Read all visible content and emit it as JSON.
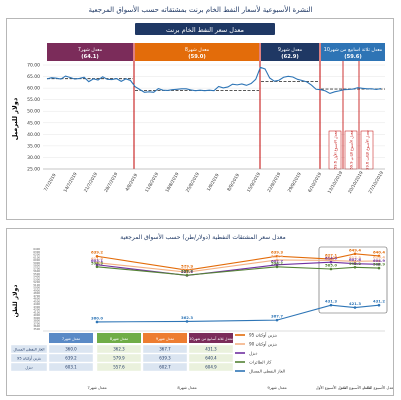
{
  "page_title": "النشرة الأسبوعية لأسعار النفط الخام برنت بمشتقاته حسب الأسواق المرجعية",
  "chart_data": [
    {
      "type": "line",
      "title": "معدل سعر النفط الخام برنت",
      "ylabel": "دولار للبرميل",
      "ylim": [
        25,
        70
      ],
      "yticks": [
        "70.00",
        "65.00",
        "60.00",
        "55.00",
        "50.00",
        "45.00",
        "40.00",
        "35.00",
        "30.00",
        "25.00"
      ],
      "x_labels": [
        "7/7/2019",
        "14/7/2019",
        "21/7/2019",
        "28/7/2019",
        "4/8/2019",
        "11/8/2019",
        "18/8/2019",
        "25/8/2019",
        "1/9/2019",
        "8/9/2019",
        "15/9/2019",
        "22/9/2019",
        "29/9/2019",
        "6/10/2019",
        "13/10/2019",
        "20/10/2019",
        "27/10/2019"
      ],
      "period_boxes": [
        {
          "label": "معدل شهر7",
          "value": "(64.1)",
          "color": "#7b2c5a"
        },
        {
          "label": "معدل شهر8",
          "value": "(59.0)",
          "color": "#e36c0a"
        },
        {
          "label": "معدل شهر9",
          "value": "(62.9)",
          "color": "#1f3864"
        },
        {
          "label": "معدل ثلاثة اسابيع من شهر10",
          "value": "(59.6)",
          "color": "#2e74b5"
        }
      ],
      "annotations": [
        "معدل الاسبوع الأول 59.6",
        "معدل الأسبوع الثاني 59.9",
        "معدل الأسبوع الثالث 59.6"
      ],
      "series": [
        {
          "values": [
            64.0,
            64.5,
            64.3,
            63.9,
            65.2,
            64.6,
            63.9,
            64.2,
            64.7,
            62.8,
            64.0,
            63.5,
            64.9,
            63.8,
            63.7,
            64.1,
            62.9,
            64.0,
            63.3,
            60.6,
            59.4,
            58.2,
            58.4,
            58.2,
            59.8,
            59.1,
            59.0,
            59.3,
            59.5,
            59.7,
            59.7,
            59.2,
            58.9,
            59.1,
            58.9,
            59.1,
            58.9,
            60.7,
            60.1,
            60.5,
            61.7,
            61.4,
            61.8,
            61.2,
            62.0,
            63.8,
            69.0,
            68.3,
            64.4,
            63.0,
            63.4,
            64.7,
            65.1,
            64.8,
            63.8,
            63.3,
            62.7,
            61.3,
            59.5,
            59.3,
            58.8,
            57.7,
            58.4,
            58.8,
            59.3,
            59.4,
            59.6,
            60.2,
            59.9,
            59.7,
            59.7,
            59.4,
            59.8
          ]
        }
      ],
      "averages": [
        64.1,
        59.0,
        62.9,
        59.6
      ]
    },
    {
      "type": "line",
      "title": "معدل سعر المشتقات النفطية (دولار/طن) حسب الأسواق المرجعية",
      "ylabel": "دولار للطن",
      "categories": [
        "معدل شهر7",
        "معدل شهر8",
        "معدل شهر9",
        "معدل الأسبوع الأول",
        "معدل الأسبوع الثاني",
        "معدل الأسبوع الثالث"
      ],
      "series": [
        {
          "name": "بنزين أوكتان 95",
          "values": [
            639.2,
            579.9,
            639.3,
            627.1,
            649.4,
            640.4
          ],
          "color": "#e36c0a"
        },
        {
          "name": "بنزين أوكتان 90",
          "values": [
            611.9,
            571.6,
            623.4,
            621.6,
            617.5,
            619.4
          ],
          "color": "#f4b183"
        },
        {
          "name": "ديزل",
          "values": [
            603.1,
            557.6,
            602.7,
            614.0,
            607.6,
            604.9
          ],
          "color": "#7030a0"
        },
        {
          "name": "كاز الطائرات",
          "values": [
            594.3,
            558.7,
            594.2,
            585.0,
            592.2,
            588.9
          ],
          "color": "#548235"
        },
        {
          "name": "الغاز النفطي المسال",
          "values": [
            360.0,
            362.3,
            367.7,
            431.3,
            421.3,
            431.2
          ],
          "color": "#2e75b6"
        }
      ],
      "yticks": [
        "6400",
        "6300",
        "6200",
        "6100",
        "6000",
        "5900",
        "5800",
        "5700",
        "5600",
        "5500",
        "5400",
        "5300",
        "5200",
        "5100",
        "5000",
        "4900",
        "4800",
        "4700",
        "4600",
        "4500",
        "4400",
        "4300",
        "4200",
        "4100",
        "4000",
        "3900",
        "3800",
        "3700",
        "3600",
        "3500"
      ],
      "table": {
        "columns": [
          "معدل شهر7",
          "معدل شهر8",
          "معدل شهر9",
          "معدل ثلاثة أسابيع من شهر10"
        ],
        "rows": [
          {
            "label": "الغاز النفطي المسال",
            "values": [
              "360.0",
              "362.3",
              "367.7",
              "431.3"
            ]
          },
          {
            "label": "بنزين أوكتان 95",
            "values": [
              "639.2",
              "579.9",
              "639.3",
              "640.4"
            ]
          },
          {
            "label": "ديزل",
            "values": [
              "603.1",
              "557.6",
              "602.7",
              "604.9"
            ]
          }
        ]
      }
    }
  ]
}
